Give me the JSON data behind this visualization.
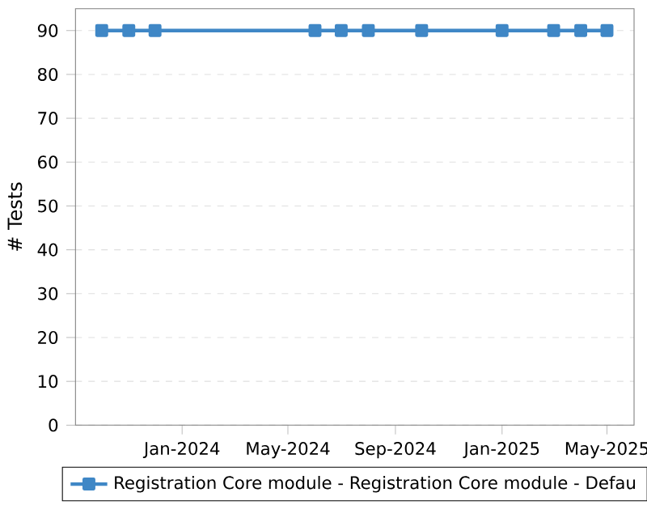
{
  "chart_data": {
    "type": "line",
    "ylabel": "# Tests",
    "x": [
      "2023-10-01",
      "2023-11-01",
      "2023-12-01",
      "2024-06-01",
      "2024-07-01",
      "2024-08-01",
      "2024-10-01",
      "2025-01-01",
      "2025-03-01",
      "2025-04-01",
      "2025-05-01"
    ],
    "series": [
      {
        "name": "Registration Core module - Registration Core module - Defau",
        "color": "#3f87c6",
        "values": [
          90,
          90,
          90,
          90,
          90,
          90,
          90,
          90,
          90,
          90,
          90
        ]
      }
    ],
    "xlim": [
      "2023-09-01",
      "2025-06-01"
    ],
    "xticks": [
      {
        "value": "2024-01-01",
        "label": "Jan-2024"
      },
      {
        "value": "2024-05-01",
        "label": "May-2024"
      },
      {
        "value": "2024-09-01",
        "label": "Sep-2024"
      },
      {
        "value": "2025-01-01",
        "label": "Jan-2025"
      },
      {
        "value": "2025-05-01",
        "label": "May-2025"
      }
    ],
    "ylim": [
      0,
      95
    ],
    "yticks": [
      0,
      10,
      20,
      30,
      40,
      50,
      60,
      70,
      80,
      90
    ],
    "grid": "y",
    "legend": "bottom",
    "marker": "square",
    "line_style": "solid"
  }
}
